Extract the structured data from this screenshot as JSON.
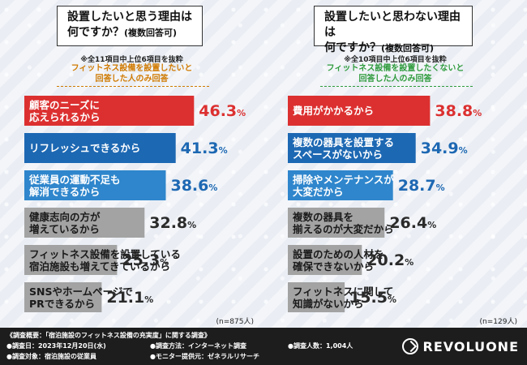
{
  "chart_data": [
    {
      "type": "bar",
      "orientation": "horizontal",
      "title": "設置したいと思う理由は何ですか？",
      "title_suffix": "(複数回答可)",
      "title_line1": "設置したいと思う理由は",
      "title_line2": "何ですか？",
      "note": "※全11項目中上位6項目を抜粋",
      "subtitle_line1": "フィットネス設備を設置したいと",
      "subtitle_line2": "回答した人のみ回答",
      "n_label": "(n=875人)",
      "categories": [
        "顧客のニーズに\n応えられるから",
        "リフレッシュできるから",
        "従業員の運動不足も\n解消できるから",
        "健康志向の方が\n増えているから",
        "フィットネス設備を設置している\n宿泊施設も増えてきているから",
        "SNSやホームページで\nPRできるから"
      ],
      "values": [
        46.3,
        41.3,
        38.6,
        32.8,
        25.3,
        21.1
      ],
      "unit": "%",
      "xlim": [
        0,
        50
      ],
      "colors": [
        "#dc3030",
        "#1d68b3",
        "#2f86cc",
        "#a3a3a3",
        "#a3a3a3",
        "#a3a3a3"
      ]
    },
    {
      "type": "bar",
      "orientation": "horizontal",
      "title": "設置したいと思わない理由は何ですか？",
      "title_suffix": "(複数回答可)",
      "title_line1": "設置したいと思わない理由は",
      "title_line2": "何ですか？",
      "note": "※全10項目中上位6項目を抜粋",
      "subtitle_line1": "フィットネス設備を設置したくないと",
      "subtitle_line2": "回答した人のみ回答",
      "n_label": "(n=129人)",
      "categories": [
        "費用がかかるから",
        "複数の器具を設置する\nスペースがないから",
        "掃除やメンテナンスが\n大変だから",
        "複数の器具を\n揃えるのが大変だから",
        "設置のための人材を\n確保できないから",
        "フィットネスに関して\n知識がないから"
      ],
      "values": [
        38.8,
        34.9,
        28.7,
        26.4,
        20.2,
        15.5
      ],
      "unit": "%",
      "xlim": [
        0,
        50
      ],
      "colors": [
        "#dc3030",
        "#1d68b3",
        "#2f86cc",
        "#a3a3a3",
        "#a3a3a3",
        "#a3a3a3"
      ]
    }
  ],
  "footer": {
    "survey": "《調査概要：「宿泊施設のフィットネス設備の充実度」に関する調査》",
    "date": "●調査日：2023年12月20日(水)",
    "target": "●調査対象：宿泊施設の従業員",
    "method": "●調査方法：インターネット調査",
    "provider": "●モニター提供元：ゼネラルリサーチ",
    "count": "●調査人数：1,004人",
    "brand": "REVOLUONE"
  },
  "colors": {
    "red": "#dc3030",
    "blue_dark": "#1d68b3",
    "blue": "#2f86cc",
    "gray": "#a3a3a3",
    "footer_bg": "#1d1d1d",
    "orange": "#d07a00",
    "green": "#2e9b3c"
  }
}
